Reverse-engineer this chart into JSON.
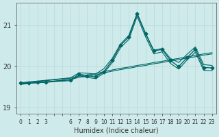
{
  "xlabel": "Humidex (Indice chaleur)",
  "bg_color": "#ceeaea",
  "line_color": "#006666",
  "x_values": [
    0,
    1,
    2,
    3,
    6,
    7,
    8,
    9,
    10,
    11,
    12,
    13,
    14,
    15,
    16,
    17,
    18,
    19,
    20,
    21,
    22,
    23
  ],
  "y_main": [
    19.6,
    19.6,
    19.62,
    19.63,
    19.68,
    19.82,
    19.78,
    19.75,
    19.88,
    20.15,
    20.52,
    20.72,
    21.28,
    20.8,
    20.38,
    20.42,
    20.15,
    20.0,
    20.22,
    20.42,
    19.98,
    19.97
  ],
  "y_upper": [
    19.61,
    19.63,
    19.65,
    19.67,
    19.73,
    19.85,
    19.84,
    19.82,
    19.95,
    20.2,
    20.55,
    20.76,
    21.3,
    20.82,
    20.4,
    20.44,
    20.2,
    20.1,
    20.3,
    20.48,
    20.05,
    20.03
  ],
  "y_lower": [
    19.59,
    19.6,
    19.61,
    19.62,
    19.66,
    19.78,
    19.74,
    19.71,
    19.84,
    20.1,
    20.46,
    20.66,
    21.22,
    20.73,
    20.31,
    20.36,
    20.08,
    19.94,
    20.16,
    20.35,
    19.91,
    19.9
  ],
  "y_trend1": [
    19.59,
    19.62,
    19.64,
    19.66,
    19.72,
    19.77,
    19.8,
    19.83,
    19.88,
    19.92,
    19.96,
    19.99,
    20.03,
    20.06,
    20.1,
    20.13,
    20.17,
    20.2,
    20.24,
    20.27,
    20.31,
    20.34
  ],
  "y_trend2": [
    19.57,
    19.59,
    19.61,
    19.63,
    19.69,
    19.74,
    19.77,
    19.8,
    19.85,
    19.89,
    19.93,
    19.96,
    20.0,
    20.03,
    20.07,
    20.1,
    20.14,
    20.17,
    20.21,
    20.24,
    20.28,
    20.31
  ],
  "ylim": [
    18.85,
    21.55
  ],
  "yticks": [
    19,
    20,
    21
  ],
  "xtick_labels": [
    "0",
    "1",
    "2",
    "3",
    "",
    "",
    "6",
    "7",
    "8",
    "9",
    "10",
    "11",
    "12",
    "13",
    "14",
    "15",
    "16",
    "17",
    "18",
    "19",
    "20",
    "21",
    "22",
    "23"
  ],
  "xtick_positions": [
    0,
    1,
    2,
    3,
    4,
    5,
    6,
    7,
    8,
    9,
    10,
    11,
    12,
    13,
    14,
    15,
    16,
    17,
    18,
    19,
    20,
    21,
    22,
    23
  ]
}
